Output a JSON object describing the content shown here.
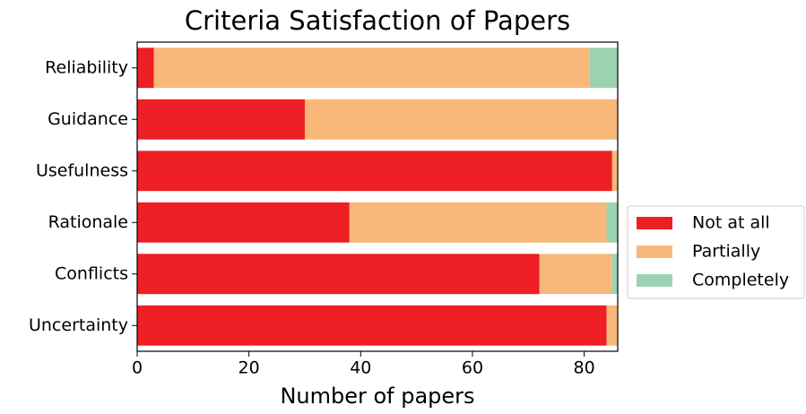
{
  "chart_data": {
    "type": "stacked-barh",
    "title": "Criteria Satisfaction of Papers",
    "xlabel": "Number of papers",
    "categories": [
      "Reliability",
      "Guidance",
      "Usefulness",
      "Rationale",
      "Conflicts",
      "Uncertainty"
    ],
    "series": [
      {
        "name": "Not at all",
        "color": "#ed1f24",
        "values": [
          3,
          30,
          85,
          38,
          72,
          84
        ]
      },
      {
        "name": "Partially",
        "color": "#f8b87a",
        "values": [
          78,
          56,
          1,
          46,
          13,
          2
        ]
      },
      {
        "name": "Completely",
        "color": "#9dd2b1",
        "values": [
          5,
          0,
          0,
          2,
          1,
          0
        ]
      }
    ],
    "xlim": [
      0,
      86
    ],
    "xticks": [
      0,
      20,
      40,
      60,
      80
    ],
    "legend": "outside-right"
  }
}
